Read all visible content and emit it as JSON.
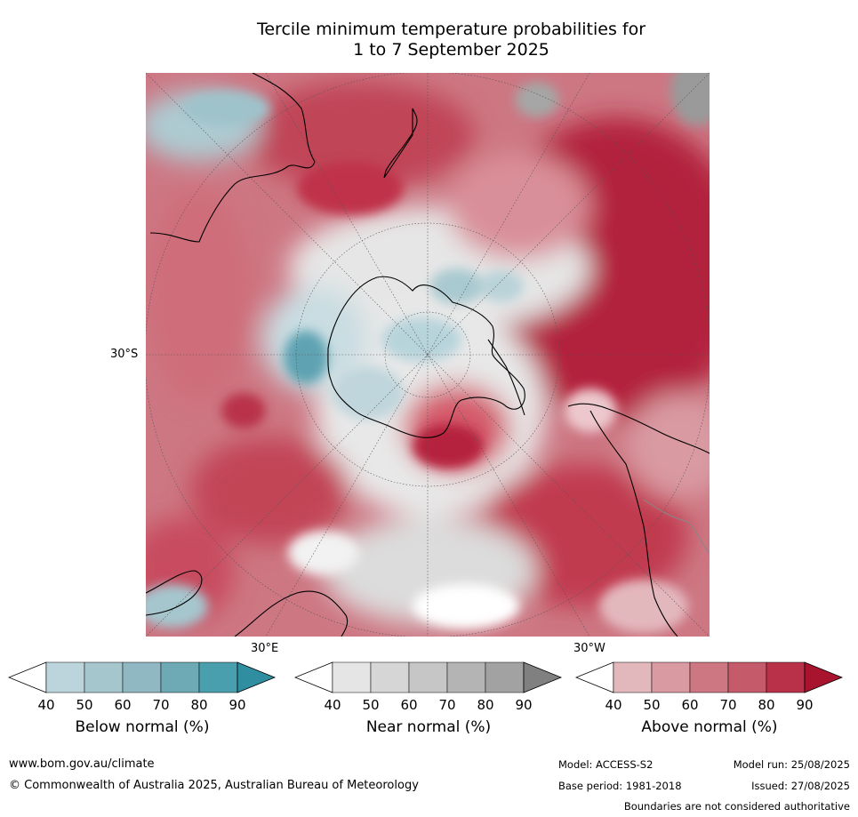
{
  "title_line1": "Tercile minimum temperature probabilities for",
  "title_line2": "1 to 7 September 2025",
  "map_labels": {
    "lat": "30°S",
    "lon_east": "30°E",
    "lon_west": "30°W"
  },
  "legends": [
    {
      "title": "Below normal (%)",
      "ticks": [
        "40",
        "50",
        "60",
        "70",
        "80",
        "90"
      ],
      "colors": [
        "#ffffff",
        "#bcd4db",
        "#a6c6ce",
        "#8fb8c3",
        "#6eaab6",
        "#4a9fae",
        "#2f8ea0"
      ]
    },
    {
      "title": "Near normal (%)",
      "ticks": [
        "40",
        "50",
        "60",
        "70",
        "80",
        "90"
      ],
      "colors": [
        "#ffffff",
        "#e5e5e5",
        "#d6d6d6",
        "#c6c6c6",
        "#b4b4b4",
        "#a2a2a2",
        "#808080"
      ]
    },
    {
      "title": "Above normal (%)",
      "ticks": [
        "40",
        "50",
        "60",
        "70",
        "80",
        "90"
      ],
      "colors": [
        "#ffffff",
        "#e3b8bd",
        "#d99aa2",
        "#cd7783",
        "#c55a6a",
        "#b93148",
        "#a8132e"
      ]
    }
  ],
  "footer": {
    "website": "www.bom.gov.au/climate",
    "copyright": "© Commonwealth of Australia 2025, Australian Bureau of Meteorology",
    "model": "Model: ACCESS-S2",
    "base_period": "Base period: 1981-2018",
    "model_run": "Model run: 25/08/2025",
    "issued": "Issued: 27/08/2025",
    "disclaimer": "Boundaries are not considered authoritative"
  }
}
